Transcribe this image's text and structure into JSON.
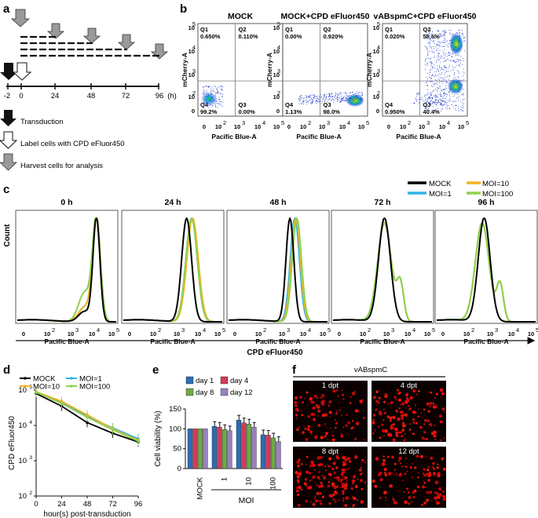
{
  "panel_labels": {
    "a": "a",
    "b": "b",
    "c": "c",
    "d": "d",
    "e": "e",
    "f": "f"
  },
  "a": {
    "timeline_ticks": [
      "-2",
      "0",
      "24",
      "48",
      "72",
      "96"
    ],
    "time_unit": "(h)",
    "legend": [
      {
        "text": "Transduction",
        "icon": "filled-black-arrow-icon"
      },
      {
        "text": "Label cells with CPD eFluor450",
        "icon": "open-arrow-icon"
      },
      {
        "text": "Harvest cells for analysis",
        "icon": "grey-arrow-icon"
      }
    ]
  },
  "b": {
    "plots": [
      {
        "title": "MOCK",
        "q1": "0.650%",
        "q2": "0.110%",
        "q3": "0.00%",
        "q4": "99.2%"
      },
      {
        "title": "MOCK+CPD eFluor450",
        "q1": "0.00%",
        "q2": "0.920%",
        "q3": "98.0%",
        "q4": "1.13%"
      },
      {
        "title": "vABspmC+CPD eFluor450",
        "q1": "0.020%",
        "q2": "58.6%",
        "q3": "40.4%",
        "q4": "0.950%"
      }
    ],
    "quadrant_names": [
      "Q1",
      "Q2",
      "Q3",
      "Q4"
    ],
    "ylabel": "mCherry-A",
    "xlabel": "Pacific Blue-A",
    "ticks": [
      "0",
      "10",
      "10",
      "10",
      "10"
    ],
    "tick_exps": [
      "2",
      "3",
      "4",
      "5"
    ]
  },
  "c": {
    "legend": [
      {
        "name": "MOCK",
        "color": "#000000"
      },
      {
        "name": "MOI=10",
        "color": "#f5b21d"
      },
      {
        "name": "MOI=1",
        "color": "#2fb4e6"
      },
      {
        "name": "MOI=100",
        "color": "#8fd14f"
      }
    ],
    "panels": [
      "0 h",
      "24 h",
      "48 h",
      "72 h",
      "96 h"
    ],
    "ylabel": "Count",
    "xlabel": "Pacific Blue-A",
    "big_xlabel": "CPD eFluor450",
    "tick_base": "10",
    "tick_exps": [
      "2",
      "3",
      "4",
      "5"
    ],
    "tick_zero": "0"
  },
  "chart_data": [
    {
      "type": "line",
      "panel": "d",
      "xlabel": "hour(s) post-transduction",
      "ylabel": "CPD eFluor450",
      "x": [
        0,
        24,
        48,
        72,
        96
      ],
      "xlim": [
        0,
        96
      ],
      "ylog": true,
      "ylim": [
        100,
        100000
      ],
      "yticks": [
        "10",
        "10",
        "10",
        "10"
      ],
      "ytick_exps": [
        "2",
        "3",
        "4",
        "5"
      ],
      "series": [
        {
          "name": "MOCK",
          "color": "#000000",
          "values": [
            80000,
            35000,
            12000,
            6000,
            3400
          ]
        },
        {
          "name": "MOI=1",
          "color": "#2fb4e6",
          "values": [
            85000,
            45000,
            18000,
            8500,
            4200
          ]
        },
        {
          "name": "MOI=10",
          "color": "#f5b21d",
          "values": [
            90000,
            48000,
            20000,
            8000,
            3800
          ]
        },
        {
          "name": "MOI=100",
          "color": "#8fd14f",
          "values": [
            88000,
            42000,
            17000,
            7500,
            3600
          ]
        }
      ]
    },
    {
      "type": "bar",
      "panel": "e",
      "ylabel": "Cell viability (%)",
      "xlabel": "MOI",
      "ylim": [
        0,
        150
      ],
      "yticks": [
        0,
        50,
        100,
        150
      ],
      "categories": [
        "MOCK",
        "1",
        "10",
        "100"
      ],
      "series": [
        {
          "name": "day 1",
          "color": "#2d6db5",
          "values": [
            100,
            106,
            122,
            85
          ]
        },
        {
          "name": "day 4",
          "color": "#d13c5a",
          "values": [
            100,
            104,
            115,
            84
          ]
        },
        {
          "name": "day 8",
          "color": "#6fa848",
          "values": [
            100,
            98,
            112,
            77
          ]
        },
        {
          "name": "day 12",
          "color": "#9b7fbf",
          "values": [
            100,
            95,
            104,
            68
          ]
        }
      ]
    }
  ],
  "f": {
    "header": "vABspmC",
    "panels": [
      "1 dpt",
      "4 dpt",
      "8 dpt",
      "12 dpt"
    ]
  }
}
